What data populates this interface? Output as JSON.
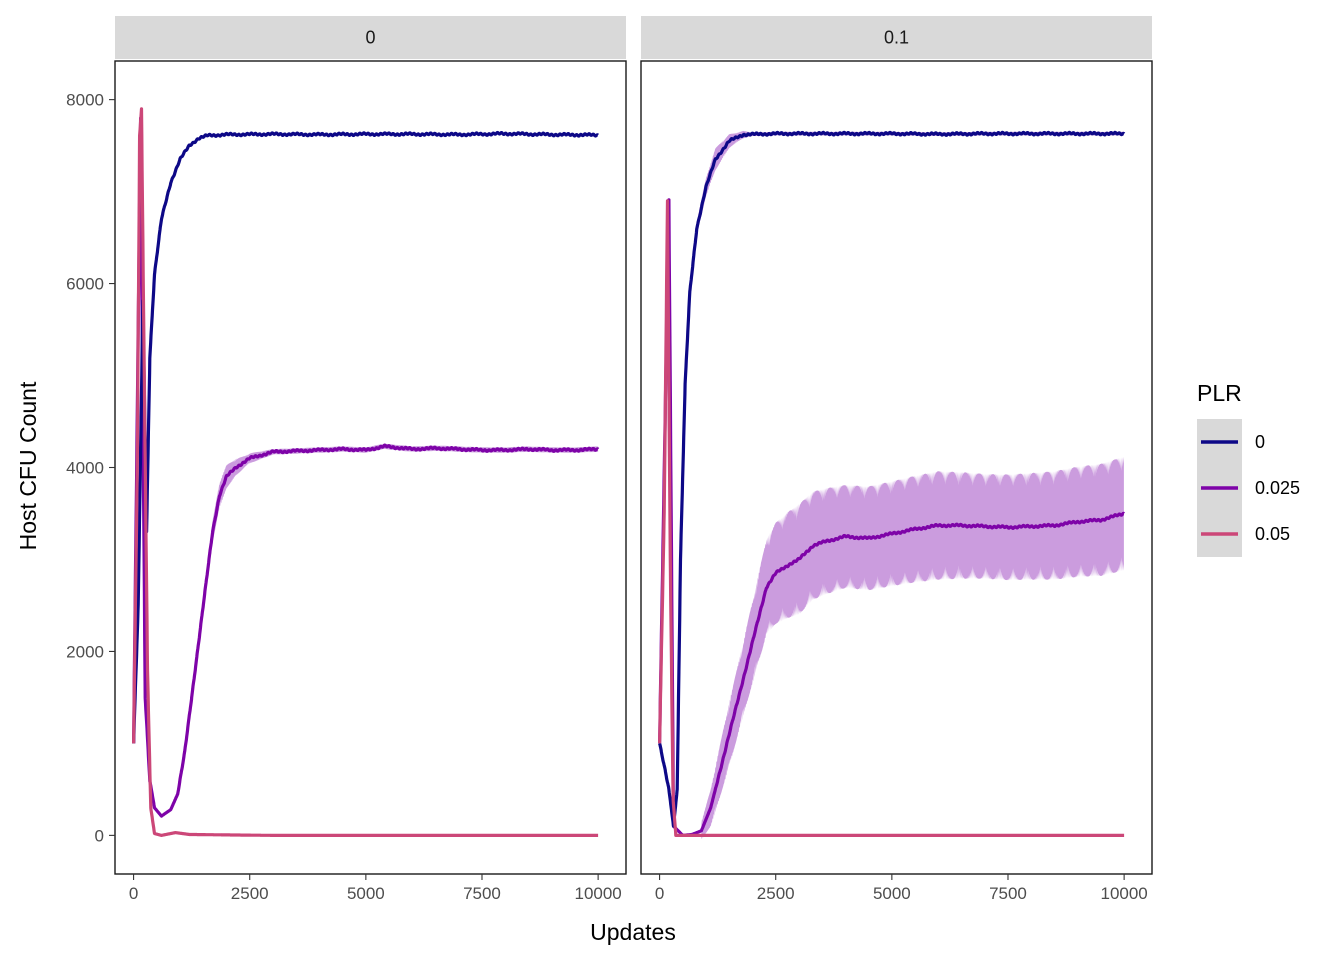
{
  "chart_data": {
    "type": "line",
    "xlabel": "Updates",
    "ylabel": "Host CFU Count",
    "xlim": [
      -400,
      10600
    ],
    "ylim": [
      -420,
      8420
    ],
    "x_ticks": [
      0,
      2500,
      5000,
      7500,
      10000
    ],
    "x_tick_labels": [
      "0",
      "2500",
      "5000",
      "7500",
      "10000"
    ],
    "y_ticks": [
      0,
      2000,
      4000,
      6000,
      8000
    ],
    "y_tick_labels": [
      "0",
      "2000",
      "4000",
      "6000",
      "8000"
    ],
    "grid": false,
    "legend": {
      "title": "PLR",
      "position": "right",
      "entries": [
        {
          "label": "0",
          "color": "#0d0887"
        },
        {
          "label": "0.025",
          "color": "#7e03a8"
        },
        {
          "label": "0.05",
          "color": "#cc4778"
        }
      ]
    },
    "ribbon_color": "#c897dc",
    "panels": [
      {
        "strip": "0",
        "series": [
          {
            "name": "0",
            "color": "#0d0887",
            "points": [
              [
                0,
                1000
              ],
              [
                100,
                2500
              ],
              [
                200,
                5800
              ],
              [
                280,
                3300
              ],
              [
                350,
                5200
              ],
              [
                450,
                6100
              ],
              [
                600,
                6700
              ],
              [
                800,
                7100
              ],
              [
                1000,
                7350
              ],
              [
                1200,
                7500
              ],
              [
                1400,
                7580
              ],
              [
                1600,
                7610
              ],
              [
                2000,
                7620
              ],
              [
                3000,
                7625
              ],
              [
                4000,
                7620
              ],
              [
                5000,
                7625
              ],
              [
                6000,
                7625
              ],
              [
                7000,
                7620
              ],
              [
                8000,
                7630
              ],
              [
                9000,
                7620
              ],
              [
                10000,
                7615
              ]
            ],
            "band": null
          },
          {
            "name": "0.025",
            "color": "#7e03a8",
            "points": [
              [
                0,
                1000
              ],
              [
                150,
                7800
              ],
              [
                250,
                1500
              ],
              [
                350,
                600
              ],
              [
                450,
                300
              ],
              [
                600,
                210
              ],
              [
                800,
                280
              ],
              [
                950,
                450
              ],
              [
                1100,
                900
              ],
              [
                1250,
                1500
              ],
              [
                1400,
                2100
              ],
              [
                1550,
                2700
              ],
              [
                1700,
                3300
              ],
              [
                1850,
                3700
              ],
              [
                2000,
                3900
              ],
              [
                2200,
                4000
              ],
              [
                2500,
                4100
              ],
              [
                3000,
                4170
              ],
              [
                3500,
                4180
              ],
              [
                4000,
                4190
              ],
              [
                4500,
                4200
              ],
              [
                5000,
                4190
              ],
              [
                5400,
                4230
              ],
              [
                6000,
                4200
              ],
              [
                6500,
                4210
              ],
              [
                7000,
                4200
              ],
              [
                7500,
                4190
              ],
              [
                8000,
                4190
              ],
              [
                8500,
                4200
              ],
              [
                9000,
                4190
              ],
              [
                9500,
                4190
              ],
              [
                10000,
                4200
              ]
            ],
            "band": [
              [
                1300,
                60
              ],
              [
                1500,
                90
              ],
              [
                1700,
                120
              ],
              [
                1900,
                140
              ],
              [
                2100,
                110
              ],
              [
                2400,
                60
              ],
              [
                3000,
                30
              ],
              [
                10000,
                30
              ]
            ]
          },
          {
            "name": "0.05",
            "color": "#cc4778",
            "points": [
              [
                0,
                1000
              ],
              [
                80,
                4000
              ],
              [
                130,
                7600
              ],
              [
                170,
                7900
              ],
              [
                230,
                5000
              ],
              [
                300,
                1800
              ],
              [
                370,
                300
              ],
              [
                450,
                20
              ],
              [
                600,
                0
              ],
              [
                900,
                30
              ],
              [
                1200,
                10
              ],
              [
                2000,
                5
              ],
              [
                3000,
                0
              ],
              [
                5000,
                0
              ],
              [
                7500,
                0
              ],
              [
                10000,
                0
              ]
            ],
            "band": null
          }
        ]
      },
      {
        "strip": "0.1",
        "series": [
          {
            "name": "0",
            "color": "#0d0887",
            "points": [
              [
                0,
                1000
              ],
              [
                200,
                500
              ],
              [
                300,
                100
              ],
              [
                380,
                500
              ],
              [
                450,
                3000
              ],
              [
                550,
                4900
              ],
              [
                650,
                5900
              ],
              [
                800,
                6600
              ],
              [
                1000,
                7050
              ],
              [
                1200,
                7350
              ],
              [
                1500,
                7550
              ],
              [
                1800,
                7620
              ],
              [
                2500,
                7630
              ],
              [
                3500,
                7630
              ],
              [
                5000,
                7630
              ],
              [
                6000,
                7625
              ],
              [
                7000,
                7630
              ],
              [
                8000,
                7630
              ],
              [
                9000,
                7630
              ],
              [
                10000,
                7630
              ]
            ],
            "band": [
              [
                800,
                80
              ],
              [
                1200,
                120
              ],
              [
                1600,
                60
              ],
              [
                2000,
                20
              ],
              [
                10000,
                20
              ]
            ]
          },
          {
            "name": "0.025",
            "color": "#7e03a8",
            "points": [
              [
                0,
                1000
              ],
              [
                200,
                6900
              ],
              [
                300,
                100
              ],
              [
                500,
                0
              ],
              [
                700,
                10
              ],
              [
                900,
                50
              ],
              [
                1100,
                300
              ],
              [
                1300,
                700
              ],
              [
                1500,
                1100
              ],
              [
                1700,
                1500
              ],
              [
                1900,
                1900
              ],
              [
                2100,
                2300
              ],
              [
                2300,
                2700
              ],
              [
                2500,
                2850
              ],
              [
                2800,
                2950
              ],
              [
                3000,
                3000
              ],
              [
                3300,
                3150
              ],
              [
                3600,
                3200
              ],
              [
                4000,
                3250
              ],
              [
                4500,
                3230
              ],
              [
                5000,
                3280
              ],
              [
                5500,
                3330
              ],
              [
                6000,
                3370
              ],
              [
                6500,
                3370
              ],
              [
                7000,
                3360
              ],
              [
                7500,
                3350
              ],
              [
                8000,
                3360
              ],
              [
                8500,
                3370
              ],
              [
                9000,
                3410
              ],
              [
                9500,
                3430
              ],
              [
                10000,
                3500
              ]
            ],
            "band": [
              [
                900,
                100
              ],
              [
                1200,
                250
              ],
              [
                1500,
                350
              ],
              [
                1800,
                400
              ],
              [
                2000,
                450
              ],
              [
                2200,
                500
              ],
              [
                2500,
                550
              ],
              [
                3000,
                600
              ],
              [
                4000,
                560
              ],
              [
                5000,
                570
              ],
              [
                6000,
                590
              ],
              [
                7000,
                570
              ],
              [
                8000,
                580
              ],
              [
                9000,
                600
              ],
              [
                10000,
                620
              ]
            ]
          },
          {
            "name": "0.05",
            "color": "#cc4778",
            "points": [
              [
                0,
                1000
              ],
              [
                100,
                3500
              ],
              [
                170,
                6900
              ],
              [
                230,
                3000
              ],
              [
                290,
                400
              ],
              [
                350,
                0
              ],
              [
                500,
                0
              ],
              [
                1000,
                0
              ],
              [
                2500,
                0
              ],
              [
                5000,
                0
              ],
              [
                7500,
                0
              ],
              [
                10000,
                0
              ]
            ],
            "band": null
          }
        ]
      }
    ]
  }
}
